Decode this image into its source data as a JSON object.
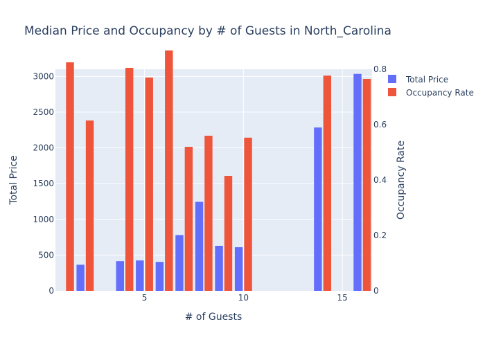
{
  "chart_data": {
    "type": "bar",
    "title": "Median Price and Occupancy by # of Guests in North_Carolina",
    "xlabel": "# of Guests",
    "ylabel": "Total Price",
    "y2label": "Occupancy Rate",
    "xlim": [
      0.5,
      16.5
    ],
    "xticks": [
      5,
      10,
      15
    ],
    "ylim": [
      0,
      3100
    ],
    "yticks": [
      0,
      500,
      1000,
      1500,
      2000,
      2500,
      3000
    ],
    "y2lim": [
      0,
      0.8
    ],
    "y2ticks": [
      0,
      0.2,
      0.4,
      0.6,
      0.8
    ],
    "y2ticklabels": [
      "0",
      "0.2",
      "0.4",
      "0.6",
      "0.8"
    ],
    "grid": true,
    "legend_position": "top-right",
    "series": [
      {
        "name": "Total Price",
        "axis": "y",
        "color": "#636efa",
        "x": [
          1,
          2,
          3,
          4,
          5,
          6,
          7,
          8,
          9,
          10,
          14,
          16
        ],
        "values": [
          0,
          365,
          0,
          415,
          425,
          405,
          780,
          1245,
          630,
          610,
          2285,
          3035
        ]
      },
      {
        "name": "Occupancy Rate",
        "axis": "y2",
        "color": "#ef553b",
        "x": [
          1,
          2,
          4,
          5,
          6,
          7,
          8,
          9,
          10,
          14,
          16
        ],
        "values": [
          0.825,
          0.615,
          0.805,
          0.77,
          0.868,
          0.52,
          0.56,
          0.415,
          0.553,
          0.777,
          0.765
        ]
      }
    ]
  }
}
